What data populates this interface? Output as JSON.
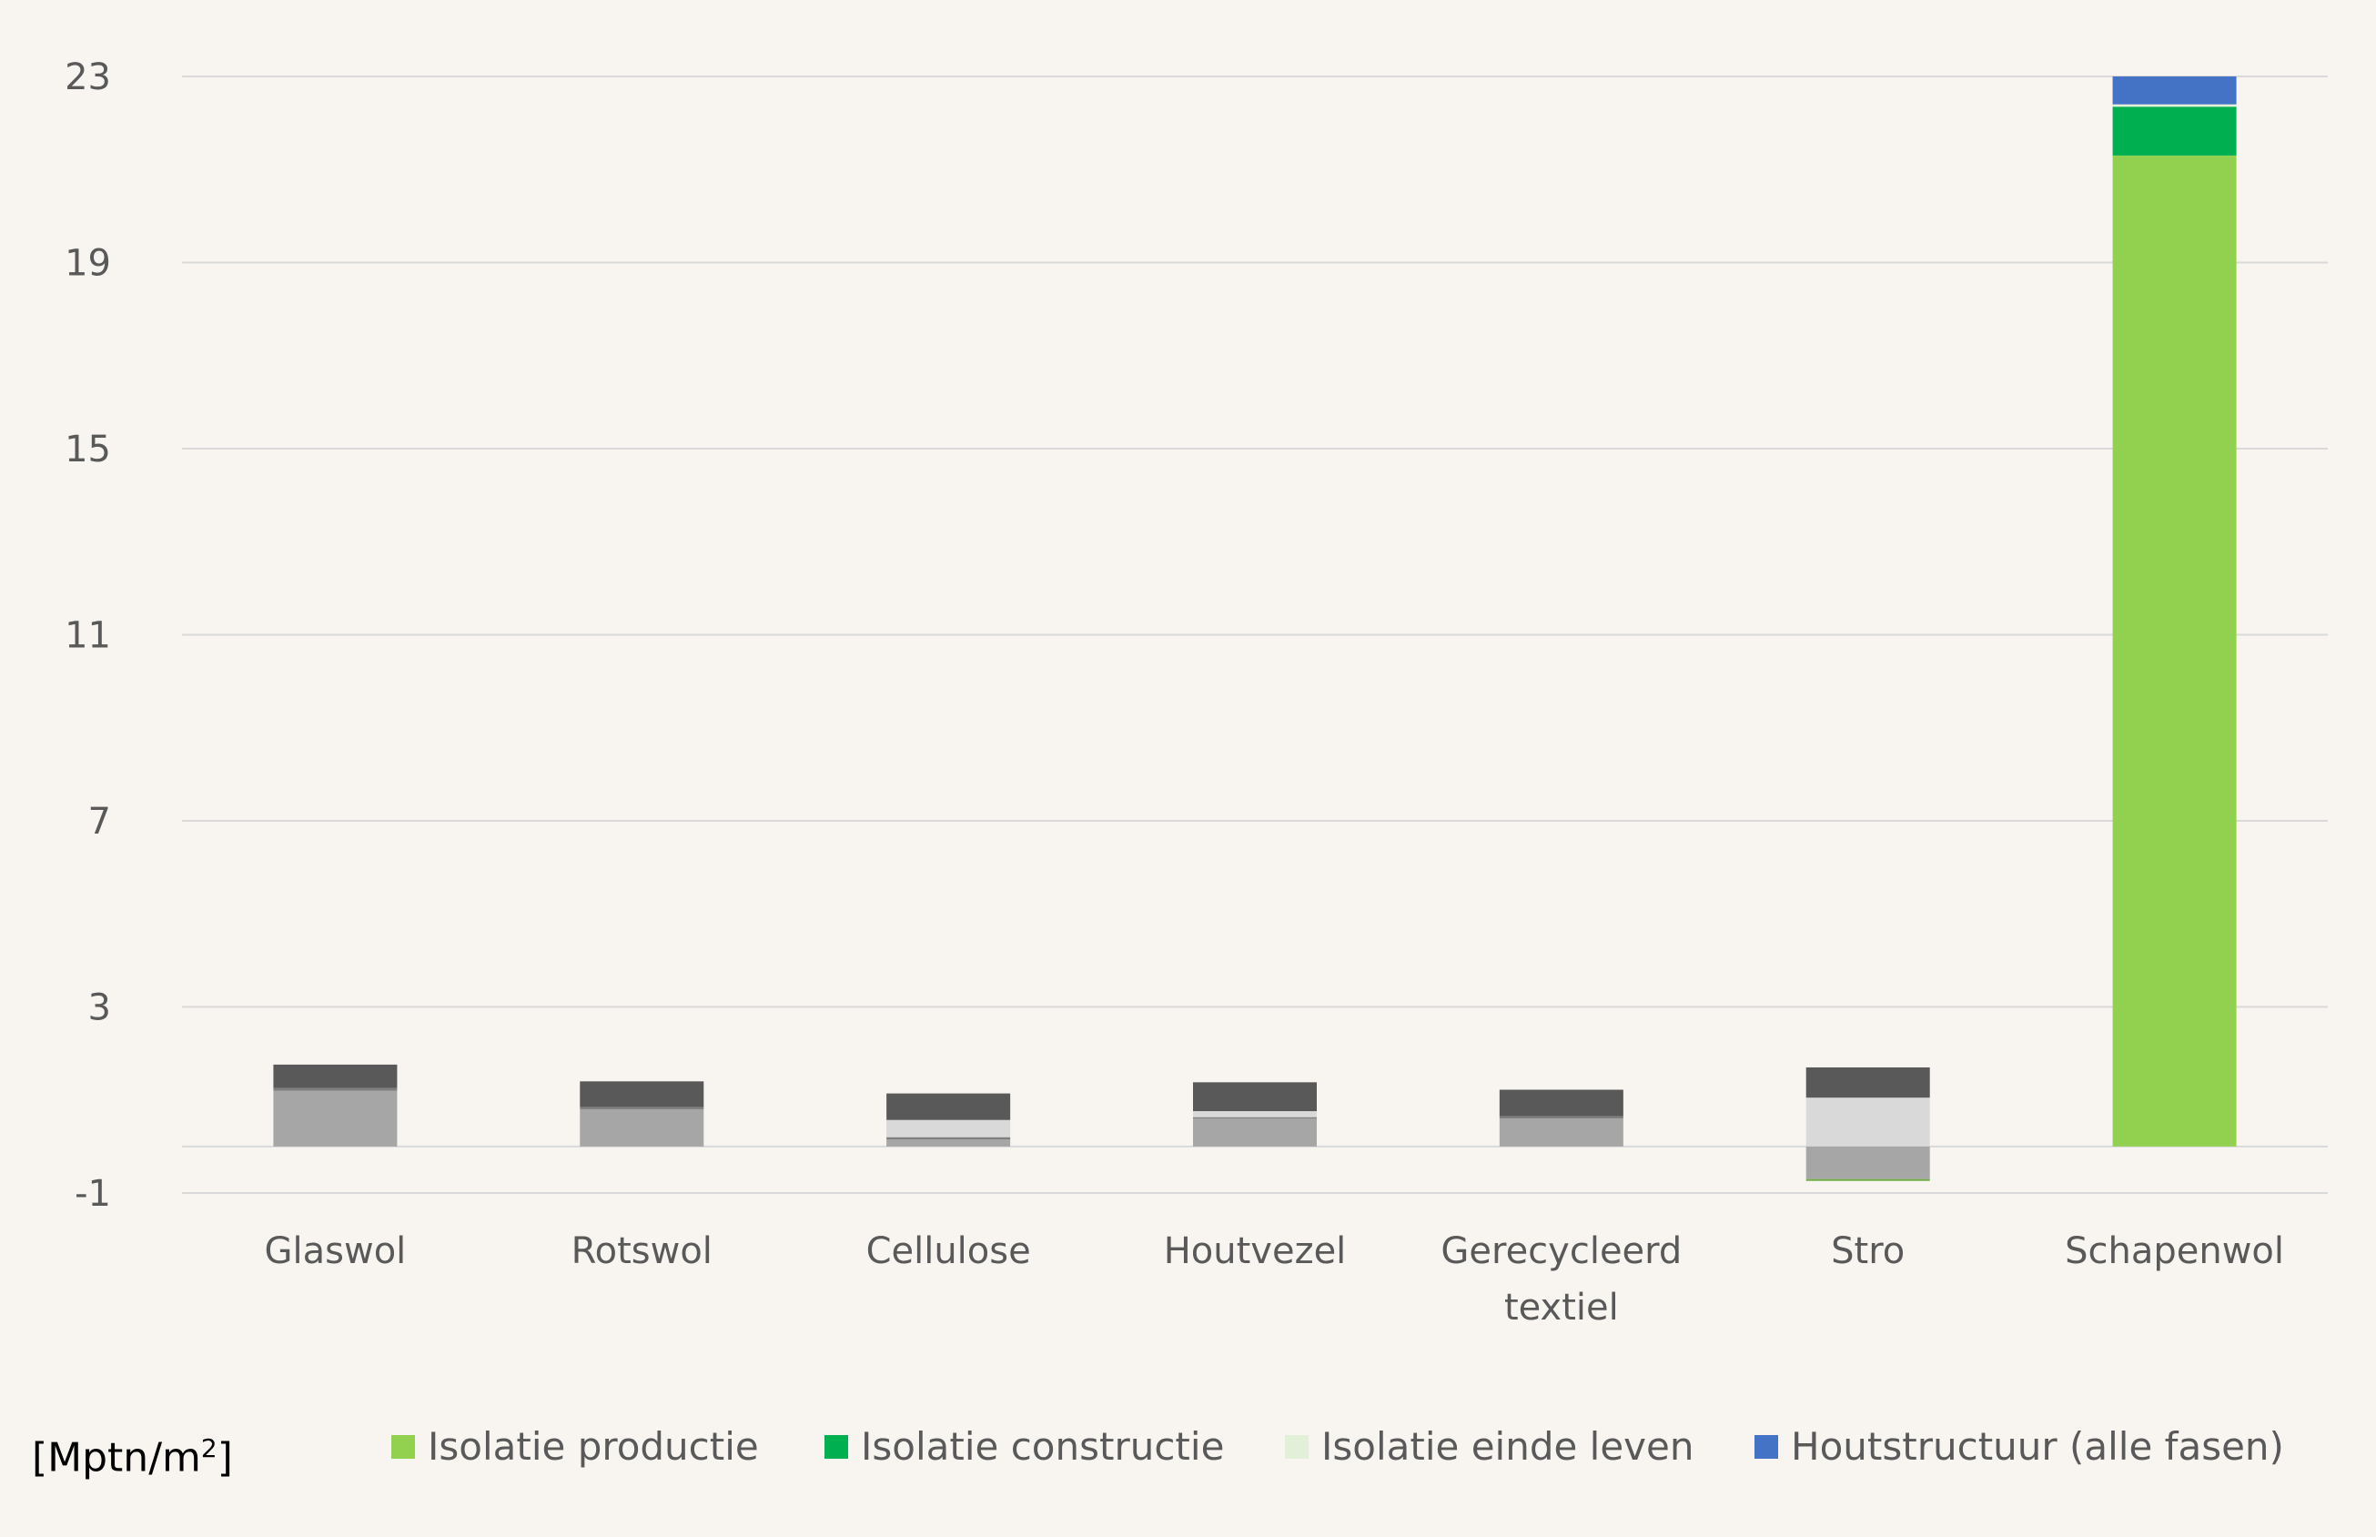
{
  "chart_data": {
    "type": "bar",
    "stacked": true,
    "categories": [
      "Glaswol",
      "Rotswol",
      "Cellulose",
      "Houtvezel",
      "Gerecycleerd textiel",
      "Stro",
      "Schapenwol"
    ],
    "category_lines": [
      [
        "Glaswol"
      ],
      [
        "Rotswol"
      ],
      [
        "Cellulose"
      ],
      [
        "Houtvezel"
      ],
      [
        "Gerecycleerd",
        "textiel"
      ],
      [
        "Stro"
      ],
      [
        "Schapenwol"
      ]
    ],
    "ylim": [
      -1,
      23
    ],
    "yticks": [
      -1,
      3,
      7,
      11,
      15,
      19,
      23
    ],
    "grid": true,
    "legend_position": "bottom",
    "unit_label": "[Mptn/m",
    "unit_sup": "2",
    "unit_close": "]",
    "series": [
      {
        "name": "Isolatie productie",
        "color": "#92d050",
        "values": [
          0,
          0,
          0,
          0,
          0,
          0,
          21.3
        ]
      },
      {
        "name": "Isolatie constructie",
        "color": "#00b050",
        "values": [
          0,
          0,
          0,
          0,
          0,
          0,
          1.05
        ]
      },
      {
        "name": "Isolatie einde leven",
        "color": "#e2f0d9",
        "values": [
          0,
          0,
          0,
          0,
          0,
          0,
          0.05
        ]
      },
      {
        "name": "Houtstructuur (alle fasen)",
        "color": "#4472c4",
        "values": [
          0,
          0,
          0,
          0,
          0,
          0,
          0.6
        ]
      }
    ],
    "gray_stacks": [
      [
        {
          "color": "#a6a6a6",
          "value": 1.2
        },
        {
          "color": "#7f7f7f",
          "value": 0.06
        },
        {
          "color": "#595959",
          "value": 0.5
        }
      ],
      [
        {
          "color": "#a6a6a6",
          "value": 0.8
        },
        {
          "color": "#7f7f7f",
          "value": 0.05
        },
        {
          "color": "#595959",
          "value": 0.55
        }
      ],
      [
        {
          "color": "#a6a6a6",
          "value": 0.15
        },
        {
          "color": "#7f7f7f",
          "value": 0.05
        },
        {
          "color": "#d9d9d9",
          "value": 0.37
        },
        {
          "color": "#595959",
          "value": 0.57
        }
      ],
      [
        {
          "color": "#a6a6a6",
          "value": 0.6
        },
        {
          "color": "#7f7f7f",
          "value": 0.03
        },
        {
          "color": "#d9d9d9",
          "value": 0.13
        },
        {
          "color": "#595959",
          "value": 0.62
        }
      ],
      [
        {
          "color": "#a6a6a6",
          "value": 0.6
        },
        {
          "color": "#7f7f7f",
          "value": 0.05
        },
        {
          "color": "#595959",
          "value": 0.57
        }
      ],
      [
        {
          "color": "#d9d9d9",
          "value": 1.05
        },
        {
          "color": "#595959",
          "value": 0.65
        },
        {
          "color": "#a6a6a6",
          "value": -0.7
        },
        {
          "color": "#70ad47",
          "value": -0.04
        }
      ]
    ]
  }
}
